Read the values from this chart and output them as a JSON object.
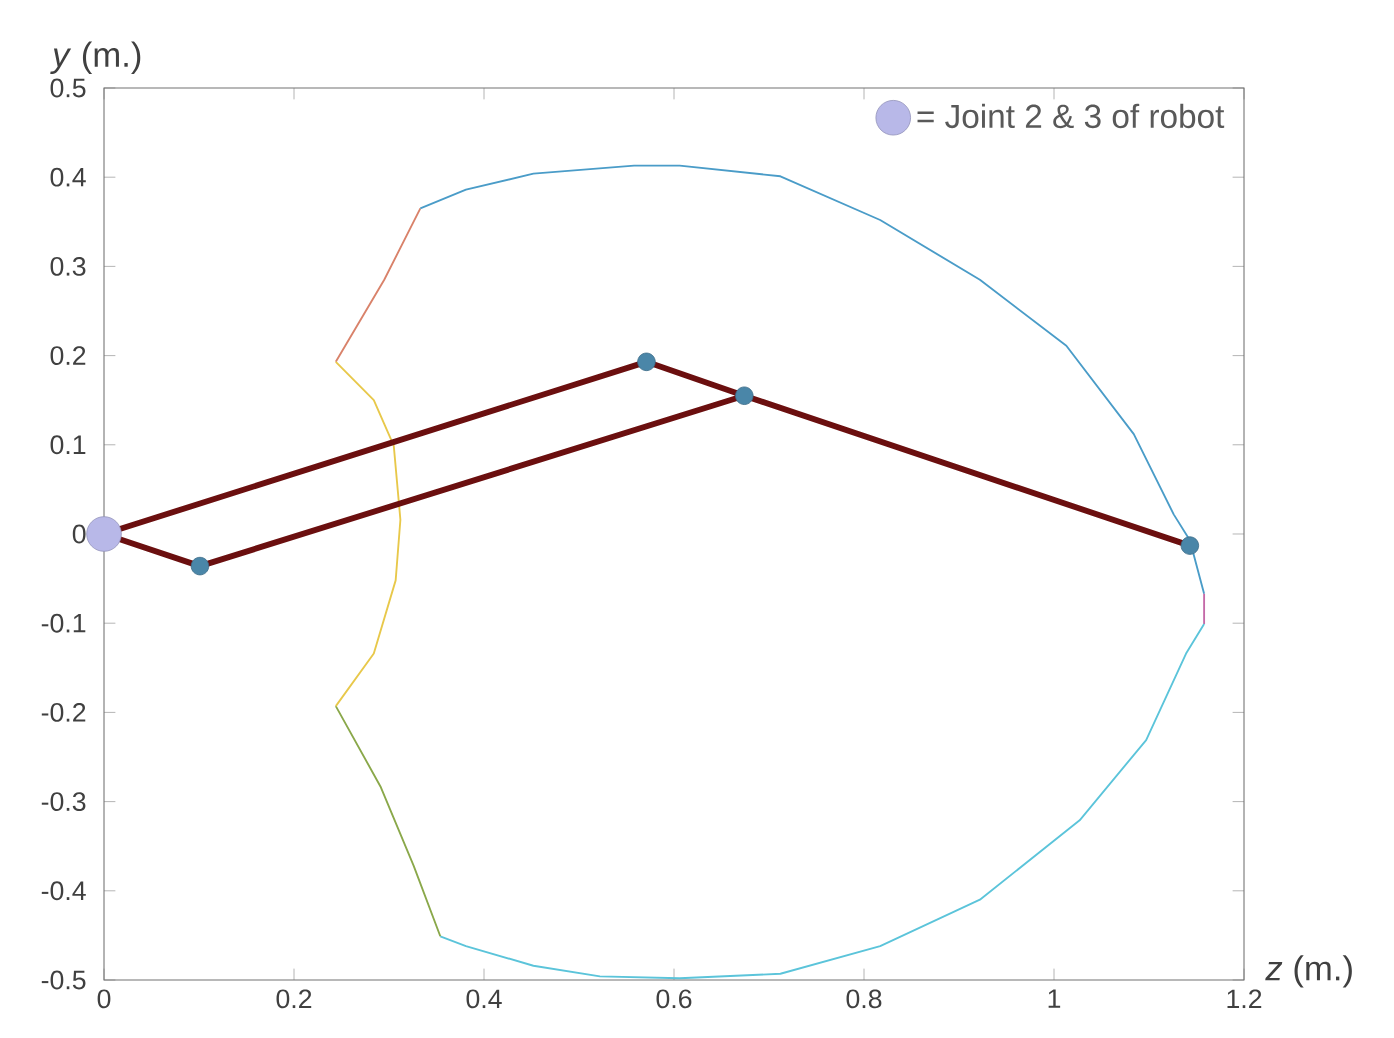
{
  "chart_data": {
    "type": "line",
    "xlabel": "*z* (m.)",
    "ylabel": "*y* (m.)",
    "xlim": [
      0,
      1.2
    ],
    "ylim": [
      -0.5,
      0.5
    ],
    "xticks": [
      0,
      0.2,
      0.4,
      0.6,
      0.8,
      1,
      1.2
    ],
    "yticks": [
      -0.5,
      -0.4,
      -0.3,
      -0.2,
      -0.1,
      0,
      0.1,
      0.2,
      0.3,
      0.4,
      0.5
    ],
    "legend": "top right",
    "grid": false,
    "series": [
      {
        "marker": "none",
        "color": "#d9826a",
        "x": [
          0.333,
          0.295,
          0.244
        ],
        "values": [
          0.365,
          0.285,
          0.193
        ]
      },
      {
        "marker": "none",
        "color": "#4a9cc8",
        "x": [
          0.333,
          0.381,
          0.452,
          0.558,
          0.606,
          0.712,
          0.817,
          0.922,
          1.013,
          1.084,
          1.126,
          1.143,
          1.158
        ],
        "values": [
          0.365,
          0.386,
          0.404,
          0.413,
          0.413,
          0.401,
          0.352,
          0.285,
          0.211,
          0.112,
          0.022,
          -0.007,
          -0.067
        ]
      },
      {
        "marker": "none",
        "color": "#c46aa8",
        "x": [
          1.158,
          1.158
        ],
        "values": [
          -0.067,
          -0.101
        ]
      },
      {
        "marker": "none",
        "color": "#5bc4da",
        "x": [
          1.158,
          1.139,
          1.097,
          1.027,
          0.922,
          0.817,
          0.712,
          0.606,
          0.522,
          0.452,
          0.381,
          0.354
        ],
        "values": [
          -0.101,
          -0.134,
          -0.231,
          -0.321,
          -0.41,
          -0.462,
          -0.493,
          -0.498,
          -0.496,
          -0.484,
          -0.462,
          -0.451
        ]
      },
      {
        "marker": "none",
        "color": "#8aa84a",
        "x": [
          0.354,
          0.326,
          0.291,
          0.244
        ],
        "values": [
          -0.451,
          -0.372,
          -0.283,
          -0.193
        ]
      },
      {
        "marker": "none",
        "color": "#e8c84a",
        "x": [
          0.244,
          0.284,
          0.307,
          0.312,
          0.305,
          0.284,
          0.244
        ],
        "values": [
          -0.193,
          -0.134,
          -0.052,
          0.016,
          0.099,
          0.15,
          0.193
        ]
      },
      {
        "marker": "none",
        "color": "#6b0f0f",
        "x": [
          1.143,
          0.674,
          0.571,
          0,
          0.101,
          0.674
        ],
        "values": [
          -0.013,
          0.155,
          0.193,
          0,
          -0.036,
          0.155
        ]
      },
      {
        "type": "scatter",
        "marker": "circle",
        "color": "#4a86a8",
        "x": [
          0.101,
          0.571,
          0.674,
          1.143
        ],
        "values": [
          -0.036,
          0.193,
          0.155,
          -0.013
        ]
      },
      {
        "type": "scatter",
        "marker": "circle",
        "color": "#b8b8e8",
        "name": "= Joint 2 & 3 of robot",
        "x": [
          0
        ],
        "values": [
          0
        ]
      }
    ]
  }
}
